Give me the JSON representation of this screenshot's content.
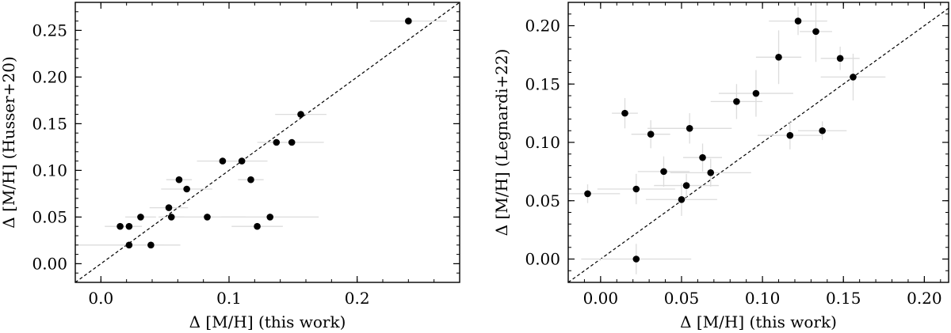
{
  "chart_data": [
    {
      "type": "scatter",
      "xlabel": "Δ [M/H] (this work)",
      "ylabel": "Δ [M/H] (Husser+20)",
      "xlim": [
        -0.02,
        0.28
      ],
      "ylim": [
        -0.02,
        0.28
      ],
      "x_ticks": [
        "0.0",
        "0.1",
        "0.2"
      ],
      "x_tick_values": [
        0.0,
        0.1,
        0.2
      ],
      "y_ticks": [
        "0.00",
        "0.05",
        "0.10",
        "0.15",
        "0.20",
        "0.25"
      ],
      "y_tick_values": [
        0.0,
        0.05,
        0.1,
        0.15,
        0.2,
        0.25
      ],
      "identity_line": true,
      "marker_color": "#000000",
      "errorbar_color": "#dcdcdc",
      "points": [
        {
          "x": 0.015,
          "y": 0.04,
          "xerr": 0.012,
          "yerr": 0
        },
        {
          "x": 0.022,
          "y": 0.04,
          "xerr": 0.01,
          "yerr": 0
        },
        {
          "x": 0.022,
          "y": 0.02,
          "xerr": 0.04,
          "yerr": 0
        },
        {
          "x": 0.031,
          "y": 0.05,
          "xerr": 0.012,
          "yerr": 0
        },
        {
          "x": 0.039,
          "y": 0.02,
          "xerr": 0.01,
          "yerr": 0
        },
        {
          "x": 0.053,
          "y": 0.06,
          "xerr": 0.015,
          "yerr": 0
        },
        {
          "x": 0.055,
          "y": 0.05,
          "xerr": 0.01,
          "yerr": 0
        },
        {
          "x": 0.061,
          "y": 0.09,
          "xerr": 0.01,
          "yerr": 0
        },
        {
          "x": 0.067,
          "y": 0.08,
          "xerr": 0.02,
          "yerr": 0
        },
        {
          "x": 0.083,
          "y": 0.05,
          "xerr": 0.03,
          "yerr": 0
        },
        {
          "x": 0.095,
          "y": 0.11,
          "xerr": 0.02,
          "yerr": 0
        },
        {
          "x": 0.11,
          "y": 0.11,
          "xerr": 0.02,
          "yerr": 0
        },
        {
          "x": 0.117,
          "y": 0.09,
          "xerr": 0.01,
          "yerr": 0
        },
        {
          "x": 0.122,
          "y": 0.04,
          "xerr": 0.02,
          "yerr": 0
        },
        {
          "x": 0.132,
          "y": 0.05,
          "xerr": 0.038,
          "yerr": 0
        },
        {
          "x": 0.137,
          "y": 0.13,
          "xerr": 0.015,
          "yerr": 0
        },
        {
          "x": 0.149,
          "y": 0.13,
          "xerr": 0.025,
          "yerr": 0
        },
        {
          "x": 0.156,
          "y": 0.16,
          "xerr": 0.02,
          "yerr": 0
        },
        {
          "x": 0.24,
          "y": 0.26,
          "xerr": 0.03,
          "yerr": 0
        }
      ]
    },
    {
      "type": "scatter",
      "xlabel": "Δ [M/H] (this work)",
      "ylabel": "Δ [M/H] (Legnardi+22)",
      "xlim": [
        -0.02,
        0.215
      ],
      "ylim": [
        -0.02,
        0.22
      ],
      "x_ticks": [
        "0.00",
        "0.05",
        "0.10",
        "0.15",
        "0.20"
      ],
      "x_tick_values": [
        0.0,
        0.05,
        0.1,
        0.15,
        0.2
      ],
      "y_ticks": [
        "0.00",
        "0.05",
        "0.10",
        "0.15",
        "0.20"
      ],
      "y_tick_values": [
        0.0,
        0.05,
        0.1,
        0.15,
        0.2
      ],
      "identity_line": true,
      "marker_color": "#000000",
      "errorbar_color": "#dcdcdc",
      "points": [
        {
          "x": -0.008,
          "y": 0.056,
          "xerr": 0.02,
          "yerr": 0.008
        },
        {
          "x": 0.015,
          "y": 0.125,
          "xerr": 0.008,
          "yerr": 0.013
        },
        {
          "x": 0.022,
          "y": 0.0,
          "xerr": 0.034,
          "yerr": 0.013
        },
        {
          "x": 0.022,
          "y": 0.06,
          "xerr": 0.024,
          "yerr": 0.013
        },
        {
          "x": 0.031,
          "y": 0.107,
          "xerr": 0.012,
          "yerr": 0.012
        },
        {
          "x": 0.039,
          "y": 0.075,
          "xerr": 0.016,
          "yerr": 0.013
        },
        {
          "x": 0.05,
          "y": 0.051,
          "xerr": 0.022,
          "yerr": 0.014
        },
        {
          "x": 0.053,
          "y": 0.063,
          "xerr": 0.02,
          "yerr": 0.01
        },
        {
          "x": 0.055,
          "y": 0.112,
          "xerr": 0.026,
          "yerr": 0.013
        },
        {
          "x": 0.063,
          "y": 0.087,
          "xerr": 0.012,
          "yerr": 0.012
        },
        {
          "x": 0.068,
          "y": 0.074,
          "xerr": 0.025,
          "yerr": 0.012
        },
        {
          "x": 0.084,
          "y": 0.135,
          "xerr": 0.016,
          "yerr": 0.015
        },
        {
          "x": 0.096,
          "y": 0.142,
          "xerr": 0.023,
          "yerr": 0.02
        },
        {
          "x": 0.11,
          "y": 0.173,
          "xerr": 0.014,
          "yerr": 0.023
        },
        {
          "x": 0.117,
          "y": 0.106,
          "xerr": 0.02,
          "yerr": 0.012
        },
        {
          "x": 0.122,
          "y": 0.204,
          "xerr": 0.018,
          "yerr": 0.012
        },
        {
          "x": 0.133,
          "y": 0.195,
          "xerr": 0.01,
          "yerr": 0.026
        },
        {
          "x": 0.137,
          "y": 0.11,
          "xerr": 0.015,
          "yerr": 0.008
        },
        {
          "x": 0.148,
          "y": 0.172,
          "xerr": 0.012,
          "yerr": 0.01
        },
        {
          "x": 0.156,
          "y": 0.156,
          "xerr": 0.02,
          "yerr": 0.02
        }
      ]
    }
  ]
}
